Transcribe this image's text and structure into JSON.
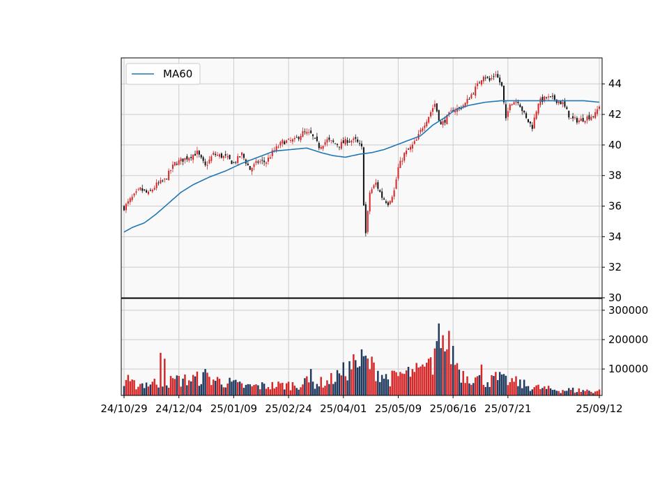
{
  "chart_data": [
    {
      "type": "candlestick",
      "panel": "price",
      "ylim": [
        30,
        45.7
      ],
      "yticks": [
        30,
        32,
        34,
        36,
        38,
        40,
        42,
        44
      ],
      "grid": true,
      "legend": {
        "position": "upper-left",
        "entries": [
          "MA60"
        ]
      },
      "colors": {
        "up": "#d62728",
        "down": "#111111",
        "ma": "#1f77b4",
        "background": "#f9f9f9",
        "grid": "#cccccc"
      },
      "price_path": [
        [
          0,
          35.9
        ],
        [
          3,
          36.4
        ],
        [
          8,
          37.1
        ],
        [
          12,
          36.8
        ],
        [
          16,
          37.4
        ],
        [
          20,
          37.7
        ],
        [
          25,
          38.8
        ],
        [
          30,
          39.1
        ],
        [
          36,
          39.5
        ],
        [
          40,
          38.6
        ],
        [
          44,
          39.4
        ],
        [
          50,
          39.2
        ],
        [
          54,
          38.8
        ],
        [
          58,
          39.4
        ],
        [
          62,
          38.4
        ],
        [
          66,
          38.9
        ],
        [
          70,
          38.9
        ],
        [
          73,
          39.5
        ],
        [
          78,
          40.2
        ],
        [
          84,
          40.3
        ],
        [
          88,
          40.8
        ],
        [
          92,
          40.7
        ],
        [
          96,
          39.9
        ],
        [
          100,
          40.3
        ],
        [
          106,
          40.0
        ],
        [
          110,
          40.3
        ],
        [
          114,
          40.3
        ],
        [
          117,
          39.8
        ],
        [
          118,
          36.2
        ],
        [
          119,
          34.2
        ],
        [
          121,
          36.9
        ],
        [
          124,
          37.5
        ],
        [
          127,
          36.6
        ],
        [
          130,
          36.2
        ],
        [
          133,
          37.0
        ],
        [
          135,
          38.5
        ],
        [
          138,
          39.4
        ],
        [
          141,
          39.8
        ],
        [
          144,
          40.3
        ],
        [
          147,
          41.2
        ],
        [
          150,
          41.9
        ],
        [
          153,
          42.7
        ],
        [
          156,
          41.3
        ],
        [
          159,
          41.8
        ],
        [
          162,
          42.3
        ],
        [
          165,
          42.4
        ],
        [
          168,
          42.7
        ],
        [
          171,
          43.3
        ],
        [
          174,
          43.9
        ],
        [
          177,
          44.6
        ],
        [
          180,
          44.2
        ],
        [
          183,
          44.7
        ],
        [
          186,
          43.8
        ],
        [
          188,
          41.6
        ],
        [
          190,
          42.8
        ],
        [
          194,
          42.9
        ],
        [
          198,
          41.7
        ],
        [
          201,
          41.2
        ],
        [
          204,
          42.8
        ],
        [
          208,
          43.1
        ],
        [
          212,
          43.0
        ],
        [
          216,
          42.7
        ],
        [
          220,
          41.7
        ],
        [
          224,
          41.6
        ],
        [
          228,
          41.8
        ],
        [
          232,
          42.0
        ],
        [
          234,
          42.6
        ]
      ],
      "ma60": [
        [
          0,
          34.3
        ],
        [
          4,
          34.6
        ],
        [
          10,
          34.9
        ],
        [
          16,
          35.5
        ],
        [
          22,
          36.2
        ],
        [
          28,
          36.9
        ],
        [
          34,
          37.4
        ],
        [
          42,
          37.9
        ],
        [
          50,
          38.3
        ],
        [
          58,
          38.8
        ],
        [
          66,
          39.2
        ],
        [
          74,
          39.6
        ],
        [
          82,
          39.7
        ],
        [
          90,
          39.8
        ],
        [
          97,
          39.5
        ],
        [
          103,
          39.3
        ],
        [
          109,
          39.2
        ],
        [
          116,
          39.4
        ],
        [
          122,
          39.5
        ],
        [
          128,
          39.7
        ],
        [
          134,
          40.0
        ],
        [
          140,
          40.3
        ],
        [
          146,
          40.6
        ],
        [
          152,
          41.3
        ],
        [
          158,
          41.8
        ],
        [
          163,
          42.3
        ],
        [
          170,
          42.6
        ],
        [
          178,
          42.8
        ],
        [
          186,
          42.9
        ],
        [
          194,
          42.9
        ],
        [
          202,
          42.9
        ],
        [
          210,
          42.9
        ],
        [
          218,
          42.9
        ],
        [
          226,
          42.9
        ],
        [
          234,
          42.8
        ]
      ]
    },
    {
      "type": "bar",
      "panel": "volume",
      "ylim": [
        10000,
        340000
      ],
      "yticks": [
        100000,
        200000,
        300000
      ],
      "ytick_labels": [
        "100000",
        "200000",
        "300000"
      ],
      "grid": true,
      "colors": {
        "up": "#d62728",
        "down": "#1f3a5f"
      },
      "volume_path": [
        [
          0,
          45000
        ],
        [
          20,
          55000
        ],
        [
          40,
          70000
        ],
        [
          60,
          40000
        ],
        [
          80,
          45000
        ],
        [
          100,
          55000
        ],
        [
          118,
          130000
        ],
        [
          130,
          65000
        ],
        [
          140,
          85000
        ],
        [
          150,
          95000
        ],
        [
          158,
          190000
        ],
        [
          162,
          150000
        ],
        [
          166,
          85000
        ],
        [
          176,
          60000
        ],
        [
          190,
          60000
        ],
        [
          200,
          40000
        ],
        [
          210,
          30000
        ],
        [
          220,
          28000
        ],
        [
          234,
          25000
        ]
      ],
      "volume_spikes": [
        [
          2,
          80000
        ],
        [
          18,
          155000
        ],
        [
          20,
          135000
        ],
        [
          26,
          78000
        ],
        [
          40,
          100000
        ],
        [
          56,
          55000
        ],
        [
          90,
          75000
        ],
        [
          92,
          100000
        ],
        [
          106,
          85000
        ],
        [
          113,
          150000
        ],
        [
          114,
          130000
        ],
        [
          115,
          105000
        ],
        [
          136,
          90000
        ],
        [
          143,
          90000
        ],
        [
          150,
          135000
        ],
        [
          151,
          140000
        ],
        [
          153,
          170000
        ],
        [
          154,
          195000
        ],
        [
          155,
          255000
        ],
        [
          157,
          215000
        ],
        [
          158,
          160000
        ],
        [
          176,
          115000
        ],
        [
          183,
          90000
        ],
        [
          185,
          90000
        ],
        [
          190,
          55000
        ]
      ],
      "n_bars": 235,
      "xtick_labels": [
        "24/10/29",
        "24/12/04",
        "25/01/09",
        "25/02/24",
        "25/04/01",
        "25/05/09",
        "25/06/16",
        "25/07/21",
        "25/09/12"
      ],
      "xtick_index": [
        0,
        27,
        54,
        81,
        108,
        135,
        162,
        189,
        234
      ]
    }
  ]
}
